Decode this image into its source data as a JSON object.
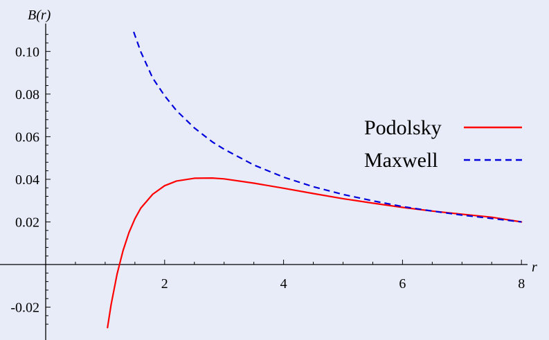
{
  "chart_data": {
    "type": "line",
    "title": "",
    "xlabel": "r",
    "ylabel": "B(r)",
    "xlim": [
      0,
      8
    ],
    "ylim": [
      -0.03,
      0.11
    ],
    "x_ticks": [
      2,
      4,
      6,
      8
    ],
    "x_tick_labels": [
      "2",
      "4",
      "6",
      "8"
    ],
    "y_ticks": [
      -0.02,
      0.02,
      0.04,
      0.06,
      0.08,
      0.1
    ],
    "y_tick_labels": [
      "-0.02",
      "0.02",
      "0.04",
      "0.06",
      "0.08",
      "0.10"
    ],
    "grid": false,
    "legend_position": "right",
    "series": [
      {
        "name": "Podolsky",
        "color": "#ff0000",
        "style": "solid",
        "x": [
          1.04,
          1.1,
          1.2,
          1.3,
          1.4,
          1.5,
          1.6,
          1.8,
          2.0,
          2.2,
          2.5,
          2.8,
          3.0,
          3.5,
          4.0,
          4.5,
          5.0,
          5.5,
          6.0,
          6.5,
          7.0,
          7.5,
          8.0
        ],
        "y": [
          -0.0296,
          -0.0188,
          -0.0045,
          0.0065,
          0.015,
          0.0215,
          0.0265,
          0.033,
          0.037,
          0.0392,
          0.0405,
          0.0406,
          0.0402,
          0.0382,
          0.0358,
          0.0333,
          0.0309,
          0.0288,
          0.0268,
          0.0251,
          0.0236,
          0.0222,
          0.02
        ]
      },
      {
        "name": "Maxwell",
        "color": "#0000dd",
        "style": "dashed",
        "x": [
          1.48,
          1.6,
          1.8,
          2.0,
          2.2,
          2.5,
          2.8,
          3.0,
          3.5,
          4.0,
          4.5,
          5.0,
          5.5,
          6.0,
          6.5,
          7.0,
          7.5,
          8.0
        ],
        "y": [
          0.1092,
          0.0998,
          0.0875,
          0.0792,
          0.0722,
          0.0641,
          0.0576,
          0.0541,
          0.0467,
          0.041,
          0.0365,
          0.0329,
          0.0299,
          0.0272,
          0.0251,
          0.0232,
          0.0216,
          0.02
        ]
      }
    ]
  }
}
